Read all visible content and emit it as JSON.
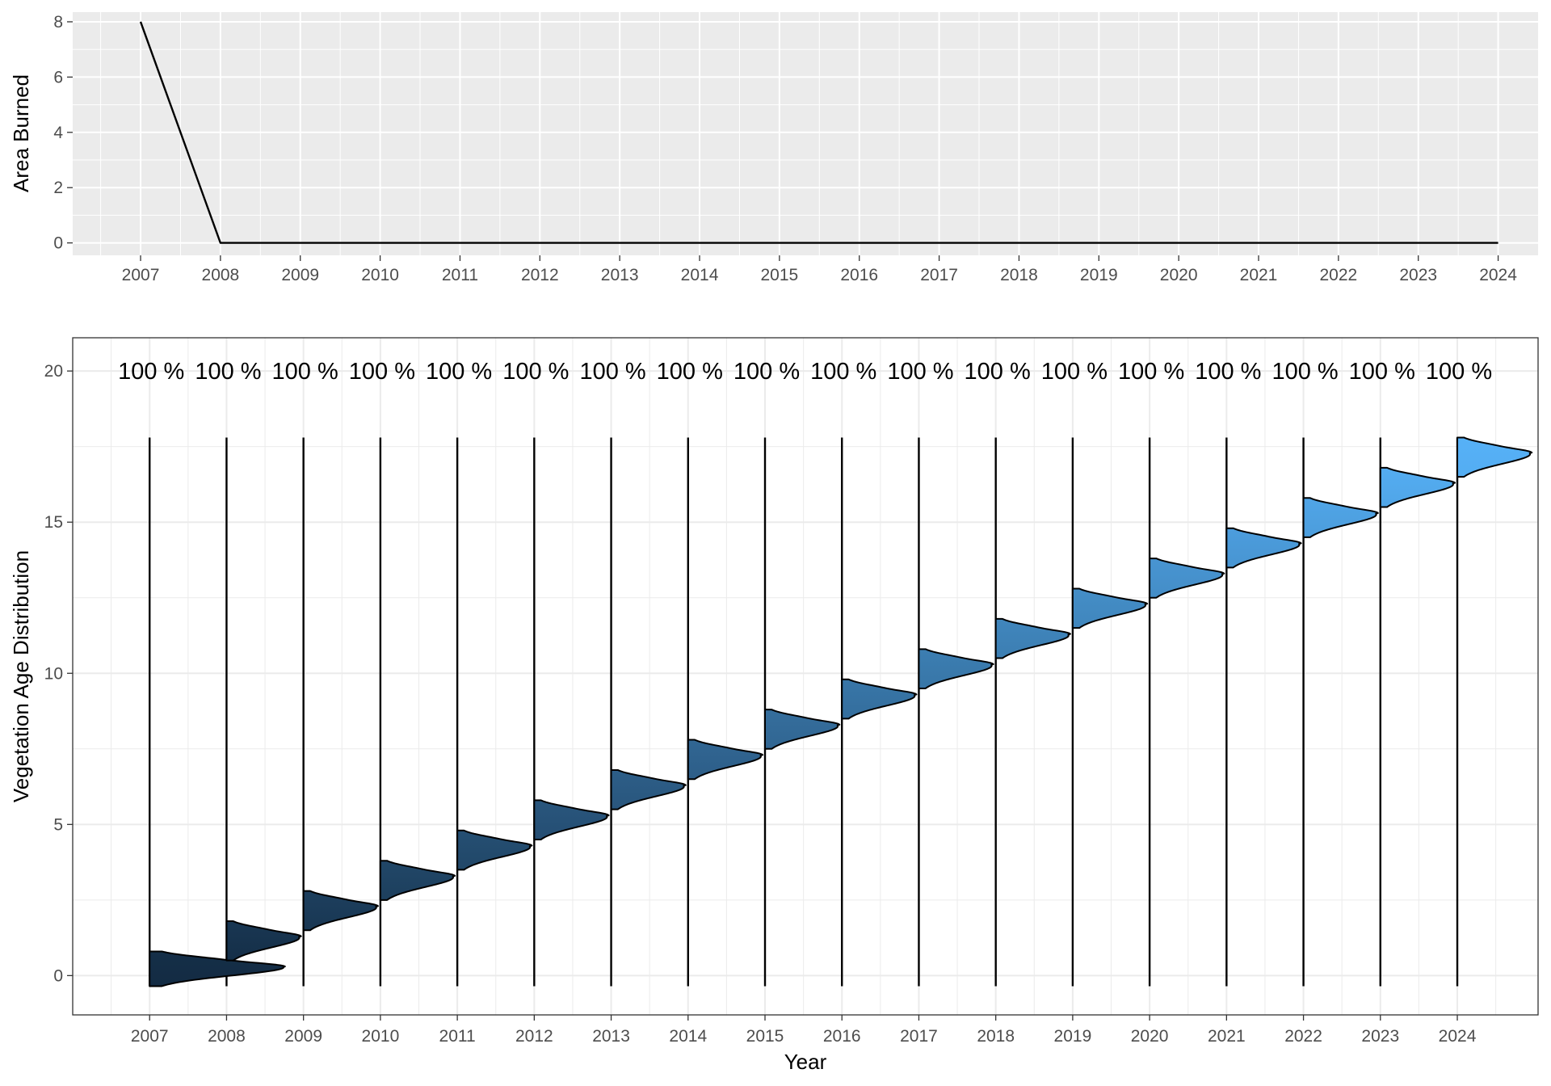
{
  "chart_data": [
    {
      "type": "line",
      "title": "",
      "xlabel": "",
      "ylabel": "Area Burned",
      "x": [
        2007,
        2008,
        2009,
        2010,
        2011,
        2012,
        2013,
        2014,
        2015,
        2016,
        2017,
        2018,
        2019,
        2020,
        2021,
        2022,
        2023,
        2024
      ],
      "x_tick_labels": [
        "2007",
        "2008",
        "2009",
        "2010",
        "2011",
        "2012",
        "2013",
        "2014",
        "2015",
        "2016",
        "2017",
        "2018",
        "2019",
        "2020",
        "2021",
        "2022",
        "2023",
        "2024"
      ],
      "series": [
        {
          "values": [
            8,
            0,
            0,
            0,
            0,
            0,
            0,
            0,
            0,
            0,
            0,
            0,
            0,
            0,
            0,
            0,
            0,
            0
          ],
          "color": "#000000"
        }
      ],
      "xlim": [
        2006.15,
        2024.5
      ],
      "ylim": [
        -0.45,
        8.35
      ],
      "y_ticks": [
        0,
        2,
        4,
        6,
        8
      ],
      "grid": true,
      "panel_background": "#ebebeb",
      "grid_color": "#ffffff"
    },
    {
      "type": "area",
      "subtype": "half-violin",
      "title": "",
      "xlabel": "Year",
      "ylabel": "Vegetation Age Distribution",
      "x": [
        2007,
        2008,
        2009,
        2010,
        2011,
        2012,
        2013,
        2014,
        2015,
        2016,
        2017,
        2018,
        2019,
        2020,
        2021,
        2022,
        2023,
        2024
      ],
      "x_tick_labels": [
        "2007",
        "2008",
        "2009",
        "2010",
        "2011",
        "2012",
        "2013",
        "2014",
        "2015",
        "2016",
        "2017",
        "2018",
        "2019",
        "2020",
        "2021",
        "2022",
        "2023",
        "2024"
      ],
      "distribution_min": [
        -0.35,
        0.5,
        1.5,
        2.5,
        3.5,
        4.5,
        5.5,
        6.5,
        7.5,
        8.5,
        9.5,
        10.5,
        11.5,
        12.5,
        13.5,
        14.5,
        15.5,
        16.5
      ],
      "distribution_max": [
        0.8,
        1.8,
        2.8,
        3.8,
        4.8,
        5.8,
        6.8,
        7.8,
        8.8,
        9.8,
        10.8,
        11.8,
        12.8,
        13.8,
        14.8,
        15.8,
        16.8,
        17.8
      ],
      "distribution_peak": [
        0.3,
        1.3,
        2.3,
        3.3,
        4.3,
        5.3,
        6.3,
        7.3,
        8.3,
        9.3,
        10.3,
        11.3,
        12.3,
        13.3,
        14.3,
        15.3,
        16.3,
        17.3
      ],
      "line_min": [
        -0.35,
        -0.35,
        -0.35,
        -0.35,
        -0.35,
        -0.35,
        -0.35,
        -0.35,
        -0.35,
        -0.35,
        -0.35,
        -0.35,
        -0.35,
        -0.35,
        -0.35,
        -0.35,
        -0.35,
        -0.35
      ],
      "line_max": [
        17.8,
        17.8,
        17.8,
        17.8,
        17.8,
        17.8,
        17.8,
        17.8,
        17.8,
        17.8,
        17.8,
        17.8,
        17.8,
        17.8,
        17.8,
        17.8,
        17.8,
        17.8
      ],
      "labels": [
        "100 %",
        "100 %",
        "100 %",
        "100 %",
        "100 %",
        "100 %",
        "100 %",
        "100 %",
        "100 %",
        "100 %",
        "100 %",
        "100 %",
        "100 %",
        "100 %",
        "100 %",
        "100 %",
        "100 %",
        "100 %"
      ],
      "label_y": 20,
      "xlim": [
        2006.0,
        2025.05
      ],
      "ylim": [
        -1.3,
        21.1
      ],
      "y_ticks": [
        0,
        5,
        10,
        15,
        20
      ],
      "grid": true,
      "panel_background": "#ffffff",
      "grid_color": "#ebebeb",
      "fill_gradient": [
        "#132b43",
        "#56b1f7"
      ]
    }
  ]
}
